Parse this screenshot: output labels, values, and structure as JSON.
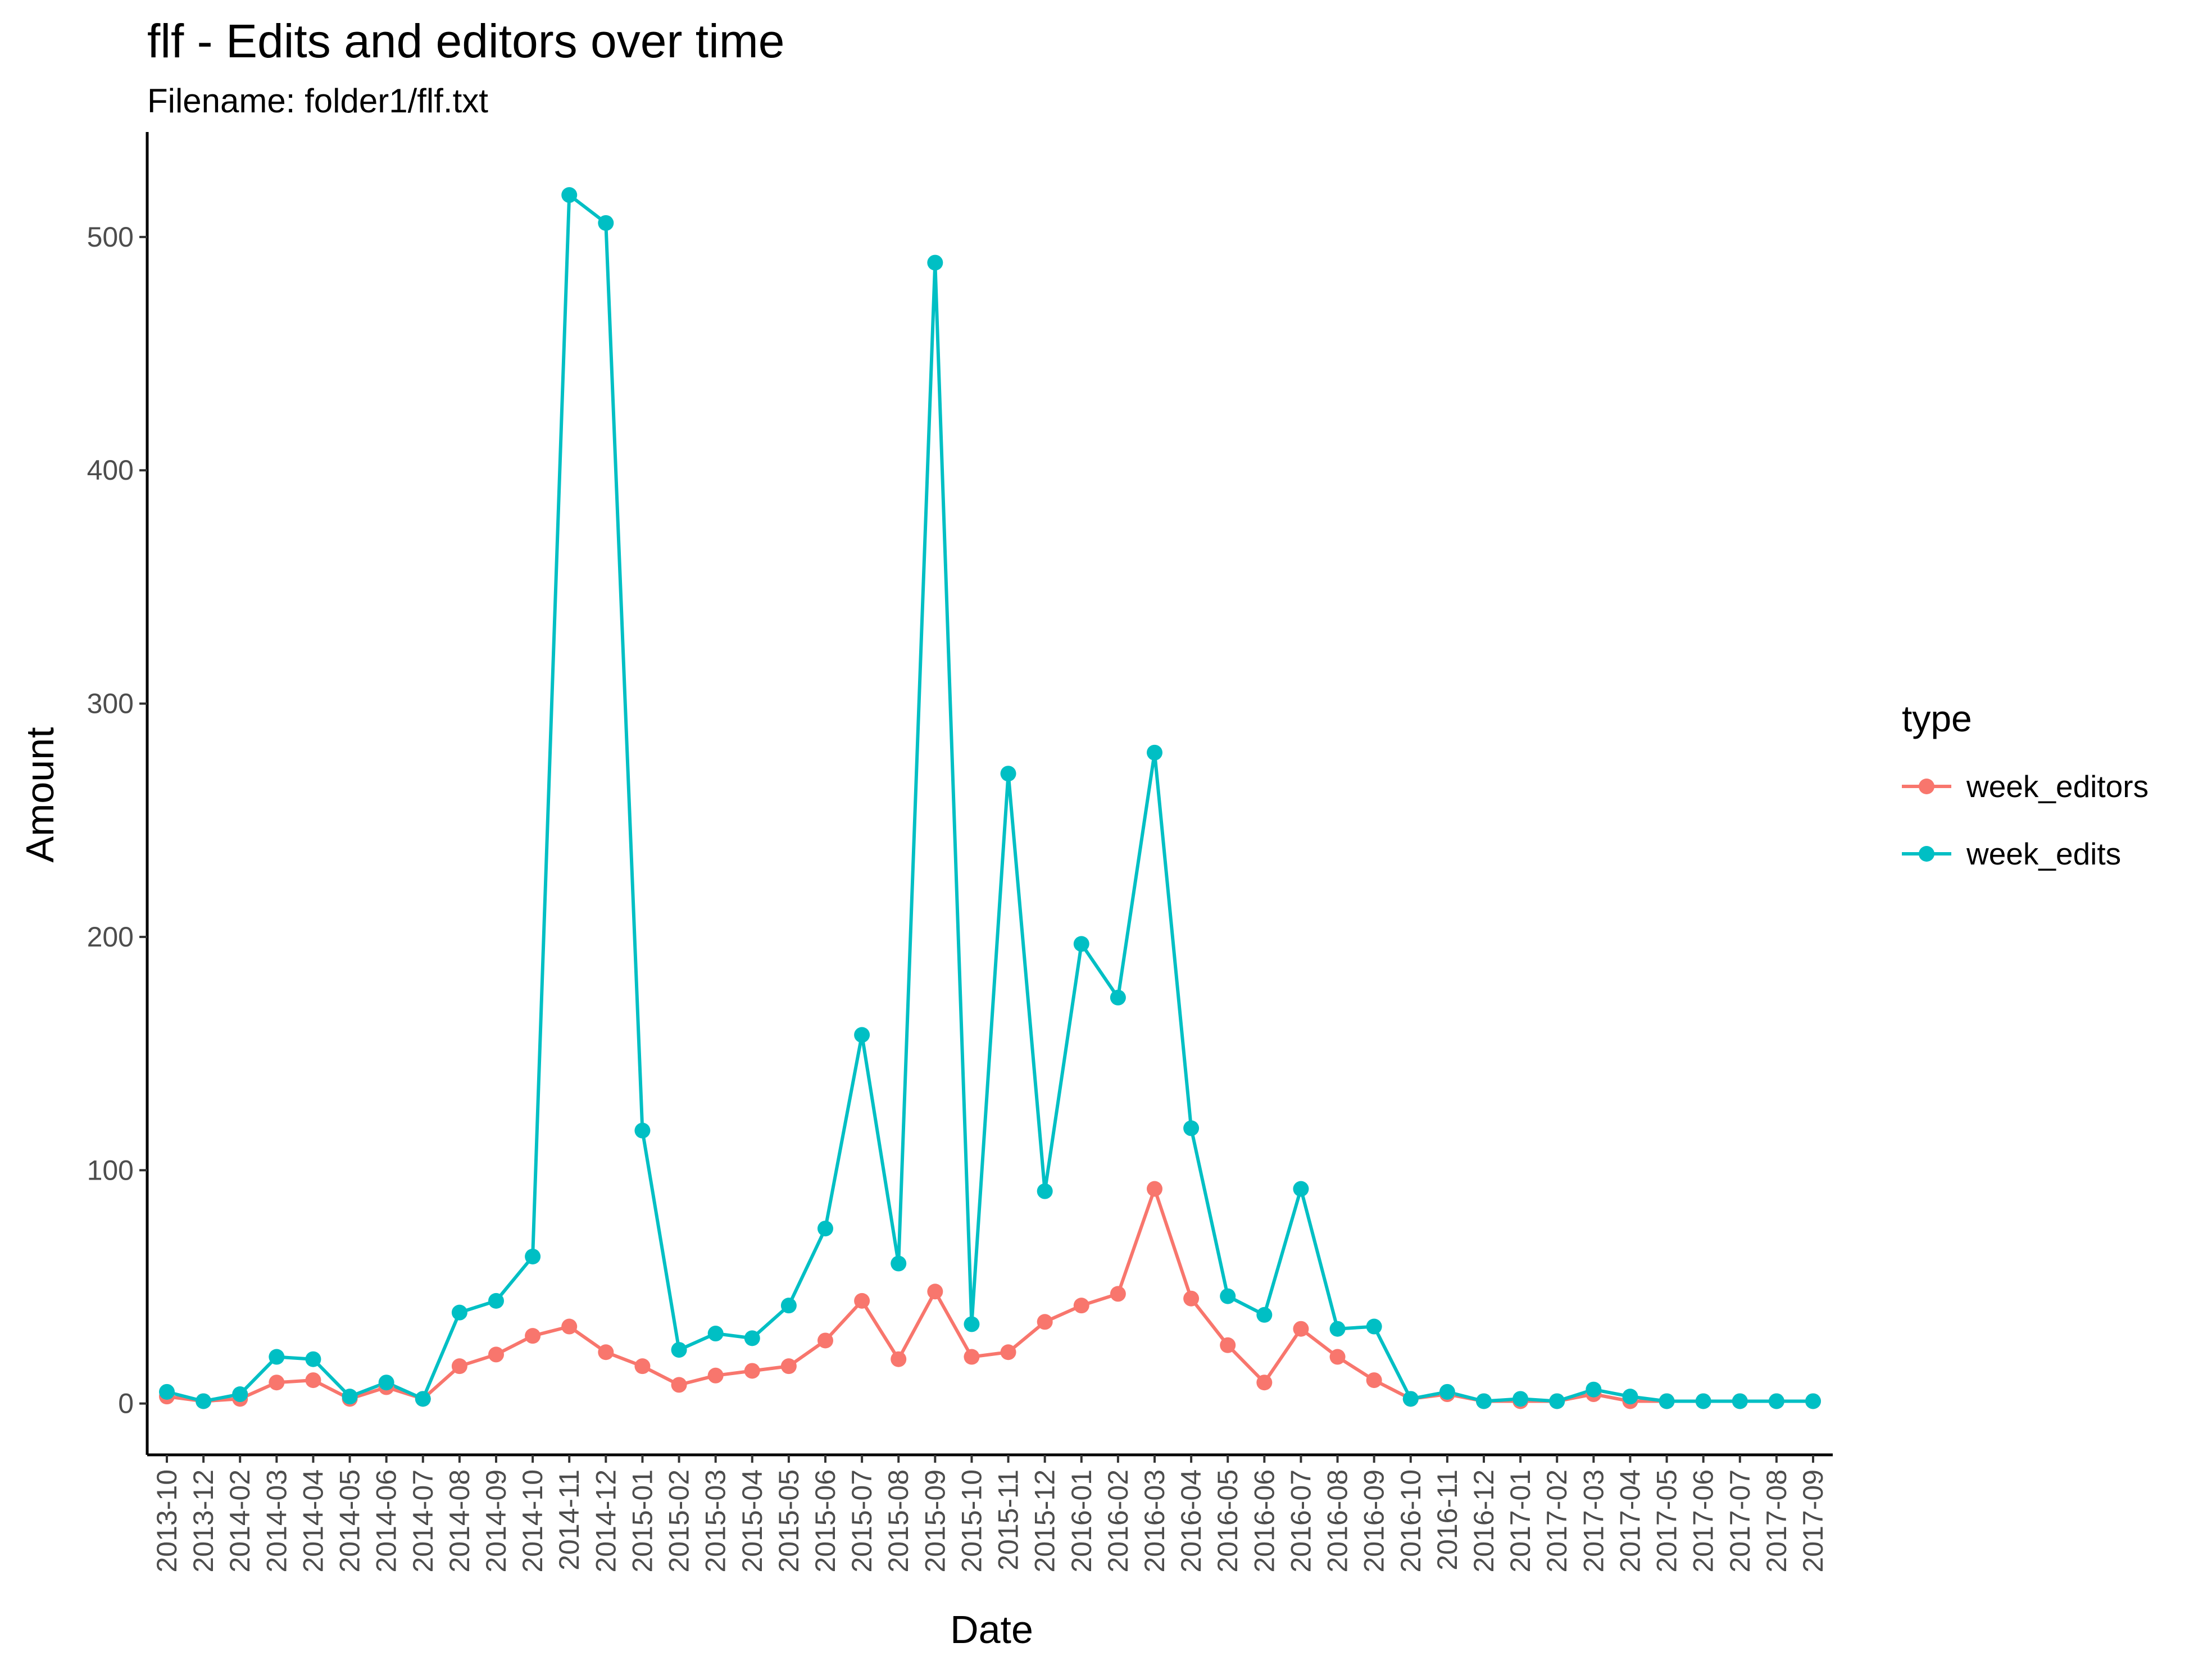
{
  "chart_data": {
    "type": "line",
    "title": "flf - Edits and editors over time",
    "subtitle": "Filename: folder1/flf.txt",
    "xlabel": "Date",
    "ylabel": "Amount",
    "ylim": [
      -22,
      545
    ],
    "yticks": [
      0,
      100,
      200,
      300,
      400,
      500
    ],
    "grid": false,
    "legend": {
      "title": "type",
      "position": "right"
    },
    "categories": [
      "2013-10",
      "2013-12",
      "2014-02",
      "2014-03",
      "2014-04",
      "2014-05",
      "2014-06",
      "2014-07",
      "2014-08",
      "2014-09",
      "2014-10",
      "2014-11",
      "2014-12",
      "2015-01",
      "2015-02",
      "2015-03",
      "2015-04",
      "2015-05",
      "2015-06",
      "2015-07",
      "2015-08",
      "2015-09",
      "2015-10",
      "2015-11",
      "2015-12",
      "2016-01",
      "2016-02",
      "2016-03",
      "2016-04",
      "2016-05",
      "2016-06",
      "2016-07",
      "2016-08",
      "2016-09",
      "2016-10",
      "2016-11",
      "2016-12",
      "2017-01",
      "2017-02",
      "2017-03",
      "2017-04",
      "2017-05",
      "2017-06",
      "2017-07",
      "2017-08",
      "2017-09"
    ],
    "series": [
      {
        "name": "week_editors",
        "color": "#f8766d",
        "values": [
          3,
          1,
          2,
          9,
          10,
          2,
          7,
          2,
          16,
          21,
          29,
          33,
          22,
          16,
          8,
          12,
          14,
          16,
          27,
          44,
          19,
          48,
          20,
          22,
          35,
          42,
          47,
          92,
          45,
          25,
          9,
          32,
          20,
          10,
          2,
          4,
          1,
          1,
          1,
          4,
          1,
          1,
          1,
          1,
          1,
          1
        ]
      },
      {
        "name": "week_edits",
        "color": "#00bfc4",
        "values": [
          5,
          1,
          4,
          20,
          19,
          3,
          9,
          2,
          39,
          44,
          63,
          518,
          506,
          117,
          23,
          30,
          28,
          42,
          75,
          158,
          60,
          489,
          34,
          270,
          91,
          197,
          174,
          279,
          118,
          46,
          38,
          92,
          32,
          33,
          2,
          5,
          1,
          2,
          1,
          6,
          3,
          1,
          1,
          1,
          1,
          1
        ]
      }
    ]
  }
}
